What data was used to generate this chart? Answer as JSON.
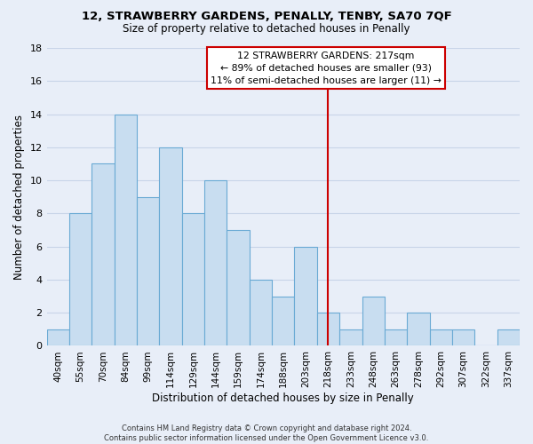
{
  "title": "12, STRAWBERRY GARDENS, PENALLY, TENBY, SA70 7QF",
  "subtitle": "Size of property relative to detached houses in Penally",
  "xlabel": "Distribution of detached houses by size in Penally",
  "ylabel": "Number of detached properties",
  "bar_labels": [
    "40sqm",
    "55sqm",
    "70sqm",
    "84sqm",
    "99sqm",
    "114sqm",
    "129sqm",
    "144sqm",
    "159sqm",
    "174sqm",
    "188sqm",
    "203sqm",
    "218sqm",
    "233sqm",
    "248sqm",
    "263sqm",
    "278sqm",
    "292sqm",
    "307sqm",
    "322sqm",
    "337sqm"
  ],
  "bar_values": [
    1,
    8,
    11,
    14,
    9,
    12,
    8,
    10,
    7,
    4,
    3,
    6,
    2,
    1,
    3,
    1,
    2,
    1,
    1,
    0,
    1
  ],
  "bar_color": "#c8ddf0",
  "bar_edge_color": "#6aaad4",
  "vline_x": 12,
  "vline_color": "#cc0000",
  "annotation_text": "12 STRAWBERRY GARDENS: 217sqm\n← 89% of detached houses are smaller (93)\n11% of semi-detached houses are larger (11) →",
  "annotation_box_color": "#ffffff",
  "annotation_box_edge": "#cc0000",
  "ylim": [
    0,
    18
  ],
  "yticks": [
    0,
    2,
    4,
    6,
    8,
    10,
    12,
    14,
    16,
    18
  ],
  "footer": "Contains HM Land Registry data © Crown copyright and database right 2024.\nContains public sector information licensed under the Open Government Licence v3.0.",
  "background_color": "#e8eef8",
  "grid_color": "#c8d4e8",
  "plot_bg_color": "#e8eef8"
}
